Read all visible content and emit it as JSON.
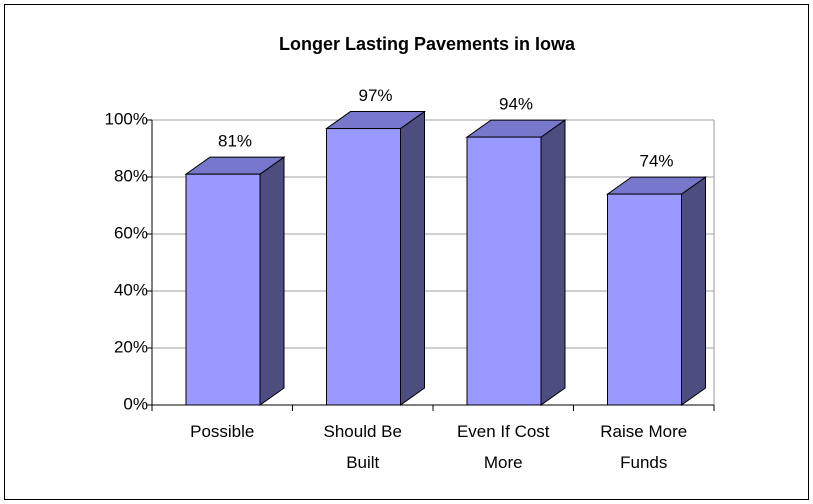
{
  "chart_data": {
    "type": "bar3d",
    "title": "Longer Lasting Pavements in Iowa",
    "categories": [
      "Possible",
      "Should Be Built",
      "Even If Cost More",
      "Raise More Funds"
    ],
    "values": [
      81,
      97,
      94,
      74
    ],
    "value_labels": [
      "81%",
      "97%",
      "94%",
      "74%"
    ],
    "color": "#9999ff",
    "ylim": [
      0,
      100
    ],
    "yticks": [
      {
        "value": 0,
        "label": "0%"
      },
      {
        "value": 20,
        "label": "20%"
      },
      {
        "value": 40,
        "label": "40%"
      },
      {
        "value": 60,
        "label": "60%"
      },
      {
        "value": 80,
        "label": "80%"
      },
      {
        "value": 100,
        "label": "100%"
      }
    ],
    "grid": true
  }
}
